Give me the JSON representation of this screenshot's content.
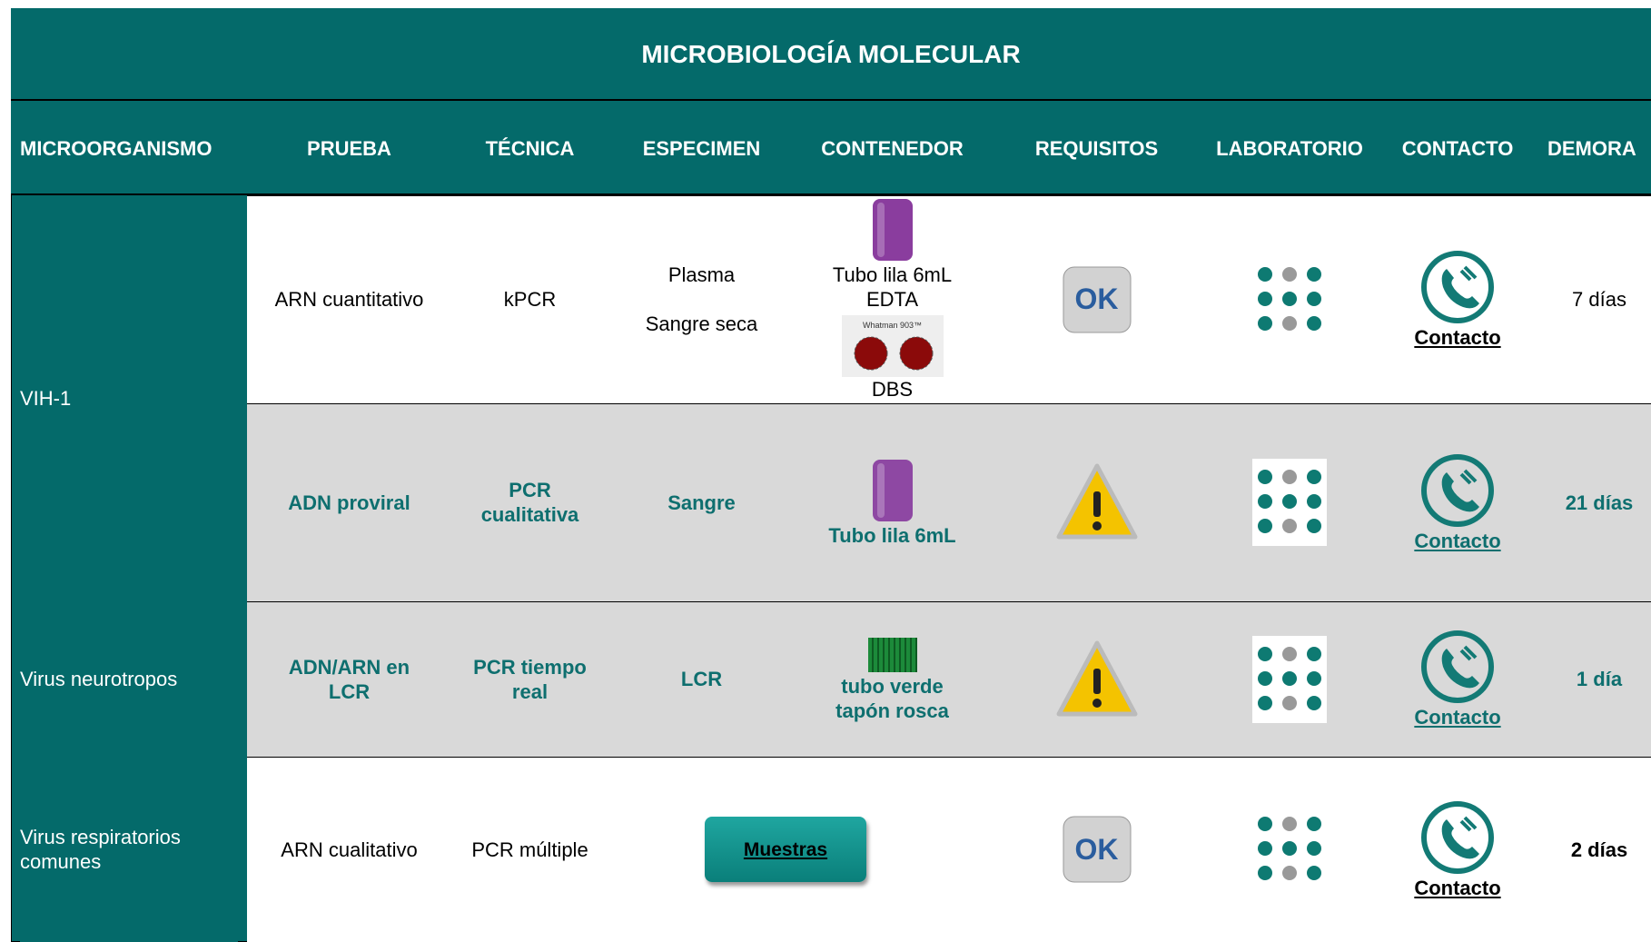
{
  "title": "MICROBIOLOGÍA MOLECULAR",
  "headers": [
    "MICROORGANISMO",
    "PRUEBA",
    "TÉCNICA",
    "ESPECIMEN",
    "CONTENEDOR",
    "REQUISITOS",
    "LABORATORIO",
    "CONTACTO",
    "DEMORA"
  ],
  "groups": [
    {
      "microorganism": "VIH-1",
      "rows": [
        {
          "prueba": "ARN cuantitativo",
          "tecnica": "kPCR",
          "especimen": [
            "Plasma",
            "Sangre seca"
          ],
          "contenedor": [
            "Tubo lila 6mL EDTA",
            "DBS"
          ],
          "dbs_card": "Whatman 903™",
          "requisitos": "OK",
          "contacto": "Contacto",
          "demora": "7 días"
        },
        {
          "prueba": "ADN proviral",
          "tecnica": "PCR cualitativa",
          "especimen": [
            "Sangre"
          ],
          "contenedor": [
            "Tubo lila 6mL"
          ],
          "contacto": "Contacto",
          "demora": "21 días"
        }
      ]
    },
    {
      "microorganism": "Virus neurotropos",
      "rows": [
        {
          "prueba": "ADN/ARN en LCR",
          "tecnica": "PCR tiempo real",
          "especimen": [
            "LCR"
          ],
          "contenedor": [
            "tubo verde tapón rosca"
          ],
          "contacto": "Contacto",
          "demora": "1 día"
        }
      ]
    },
    {
      "microorganism": "Virus respiratorios comunes",
      "rows": [
        {
          "prueba": "ARN cualitativo",
          "tecnica": "PCR múltiple",
          "sample_button": "Muestras",
          "requisitos": "OK",
          "contacto": "Contacto",
          "demora": "2 días"
        }
      ]
    }
  ]
}
